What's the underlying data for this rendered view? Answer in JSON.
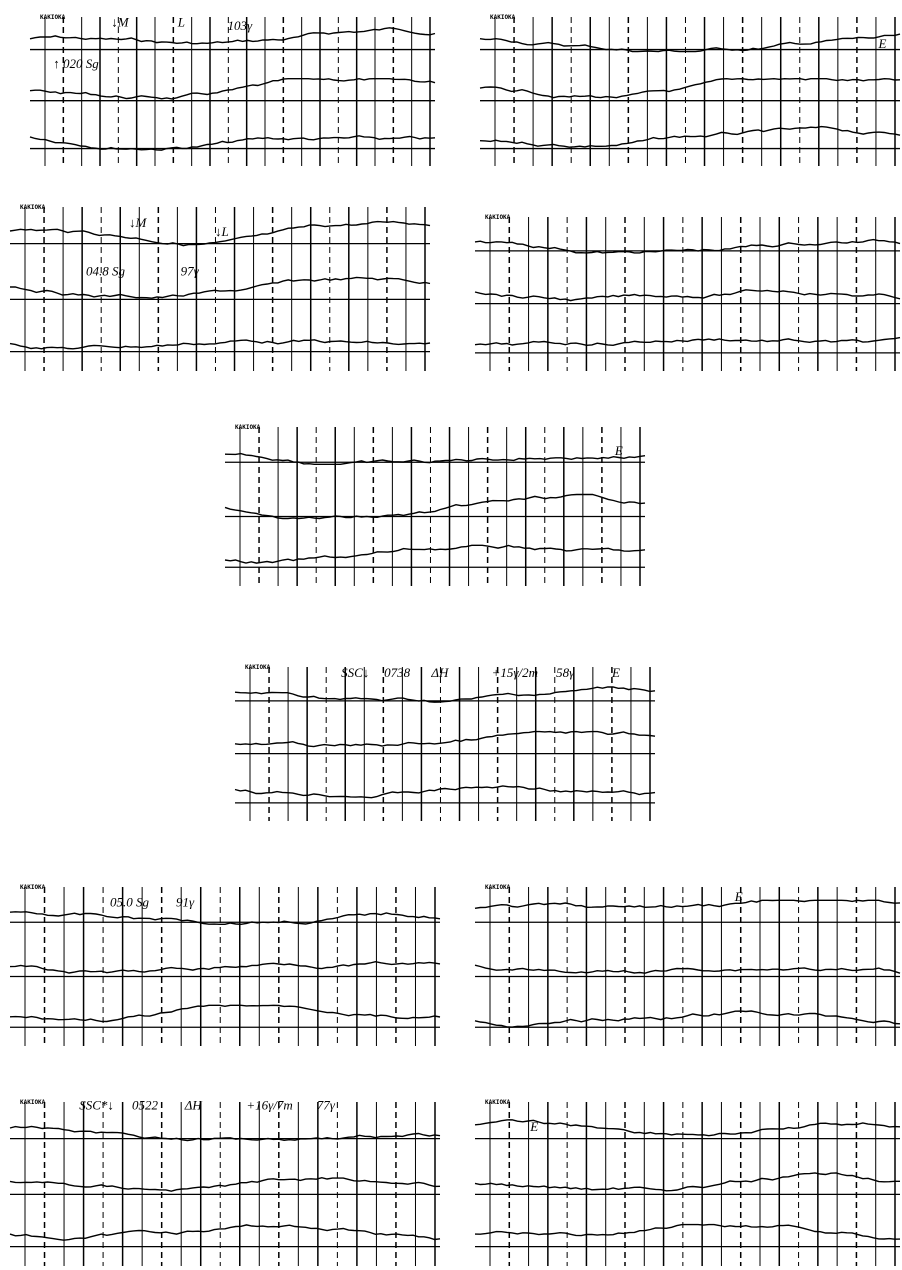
{
  "panels": [
    {
      "label": "KAKIOKA",
      "annotations": [
        "↓M",
        "L",
        "103γ",
        "↑ 020 Sg"
      ]
    },
    {
      "label": "KAKIOKA",
      "annotations": [
        "E"
      ]
    },
    {
      "label": "KAKIOKA",
      "annotations": [
        "04.8 Sg",
        "↓M",
        "97γ",
        "↓L"
      ]
    },
    {
      "label": "KAKIOKA"
    },
    {
      "label": "KAKIOKA",
      "annotations": [
        "E"
      ]
    },
    {
      "label": "KAKIOKA",
      "annotations": [
        "SSC↓",
        "0738",
        "ΔH",
        "+15γ/2m",
        "58γ",
        "E"
      ]
    },
    {
      "label": "KAKIOKA",
      "annotations": [
        "05.0 Sg",
        "91γ"
      ]
    },
    {
      "label": "KAKIOKA",
      "annotations": [
        "E"
      ]
    },
    {
      "label": "KAKIOKA",
      "annotations": [
        "SSC*↓",
        "0522",
        "ΔH",
        "+16γ/7m",
        "77γ"
      ]
    },
    {
      "label": "KAKIOKA",
      "annotations": [
        "E"
      ]
    }
  ]
}
